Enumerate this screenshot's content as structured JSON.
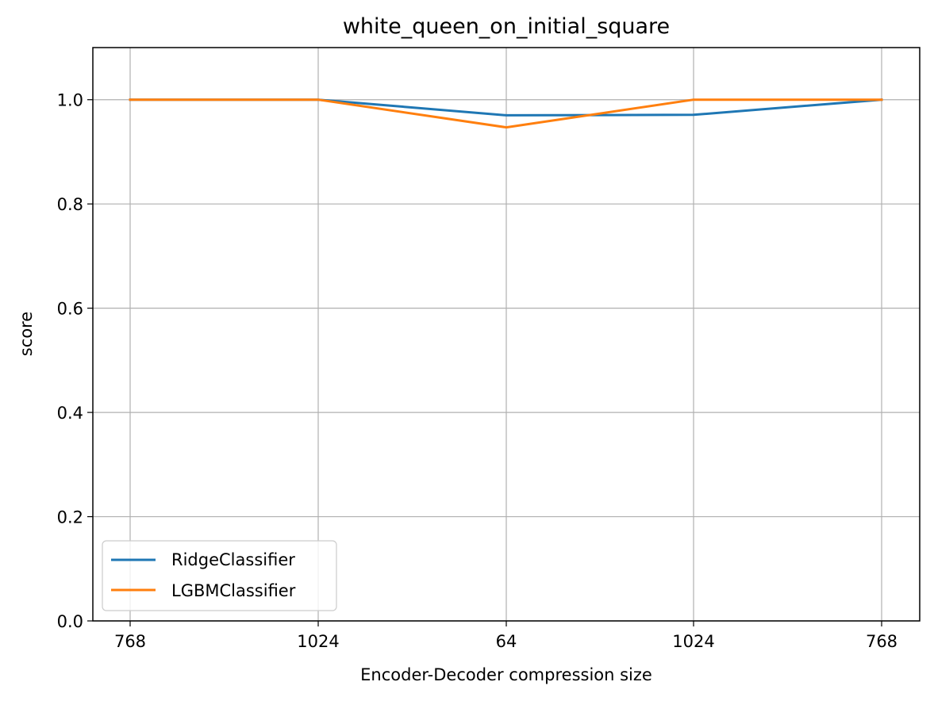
{
  "chart_data": {
    "type": "line",
    "title": "white_queen_on_initial_square",
    "xlabel": "Encoder-Decoder compression size",
    "ylabel": "score",
    "categories": [
      "768",
      "1024",
      "64",
      "1024",
      "768"
    ],
    "yticks": [
      "0.0",
      "0.2",
      "0.4",
      "0.6",
      "0.8",
      "1.0"
    ],
    "ylim": [
      0,
      1.1
    ],
    "grid": true,
    "legend_position": "lower-left",
    "series": [
      {
        "name": "RidgeClassifier",
        "color": "#1f77b4",
        "values": [
          1.0,
          1.0,
          0.97,
          0.971,
          1.0
        ]
      },
      {
        "name": "LGBMClassifier",
        "color": "#ff7f0e",
        "values": [
          1.0,
          1.0,
          0.947,
          1.0,
          1.0
        ]
      }
    ]
  }
}
